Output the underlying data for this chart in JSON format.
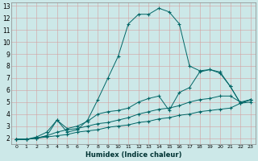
{
  "xlabel": "Humidex (Indice chaleur)",
  "background_color": "#cce8e8",
  "grid_color": "#b0c8c8",
  "line_color": "#006666",
  "xlim": [
    -0.5,
    23.5
  ],
  "ylim": [
    1.5,
    13.3
  ],
  "xticks": [
    0,
    1,
    2,
    3,
    4,
    5,
    6,
    7,
    8,
    9,
    10,
    11,
    12,
    13,
    14,
    15,
    16,
    17,
    18,
    19,
    20,
    21,
    22,
    23
  ],
  "yticks": [
    2,
    3,
    4,
    5,
    6,
    7,
    8,
    9,
    10,
    11,
    12,
    13
  ],
  "series": [
    {
      "x": [
        0,
        1,
        2,
        3,
        4,
        5,
        6,
        7,
        8,
        9,
        10,
        11,
        12,
        13,
        14,
        15,
        16,
        17,
        18,
        19,
        20,
        21,
        22,
        23
      ],
      "y": [
        1.9,
        1.9,
        2.1,
        2.5,
        3.5,
        2.5,
        2.7,
        3.5,
        5.2,
        7.0,
        8.8,
        11.5,
        12.3,
        12.3,
        12.8,
        12.5,
        11.5,
        8.0,
        7.6,
        7.7,
        7.5,
        6.3,
        4.9,
        5.2
      ]
    },
    {
      "x": [
        0,
        1,
        2,
        3,
        4,
        5,
        6,
        7,
        8,
        9,
        10,
        11,
        12,
        13,
        14,
        15,
        16,
        17,
        18,
        19,
        20,
        21,
        22,
        23
      ],
      "y": [
        1.9,
        1.9,
        2.0,
        2.2,
        3.5,
        2.8,
        3.0,
        3.4,
        4.0,
        4.2,
        4.3,
        4.5,
        5.0,
        5.3,
        5.5,
        4.3,
        5.8,
        6.2,
        7.5,
        7.7,
        7.4,
        6.3,
        4.9,
        5.2
      ]
    },
    {
      "x": [
        0,
        1,
        2,
        3,
        4,
        5,
        6,
        7,
        8,
        9,
        10,
        11,
        12,
        13,
        14,
        15,
        16,
        17,
        18,
        19,
        20,
        21,
        22,
        23
      ],
      "y": [
        1.9,
        1.9,
        2.0,
        2.2,
        2.5,
        2.7,
        2.8,
        3.0,
        3.2,
        3.3,
        3.5,
        3.7,
        4.0,
        4.2,
        4.4,
        4.5,
        4.7,
        5.0,
        5.2,
        5.3,
        5.5,
        5.5,
        5.0,
        5.2
      ]
    },
    {
      "x": [
        0,
        1,
        2,
        3,
        4,
        5,
        6,
        7,
        8,
        9,
        10,
        11,
        12,
        13,
        14,
        15,
        16,
        17,
        18,
        19,
        20,
        21,
        22,
        23
      ],
      "y": [
        1.9,
        1.9,
        2.0,
        2.1,
        2.2,
        2.3,
        2.5,
        2.6,
        2.7,
        2.9,
        3.0,
        3.1,
        3.3,
        3.4,
        3.6,
        3.7,
        3.9,
        4.0,
        4.2,
        4.3,
        4.4,
        4.5,
        4.9,
        5.0
      ]
    }
  ]
}
